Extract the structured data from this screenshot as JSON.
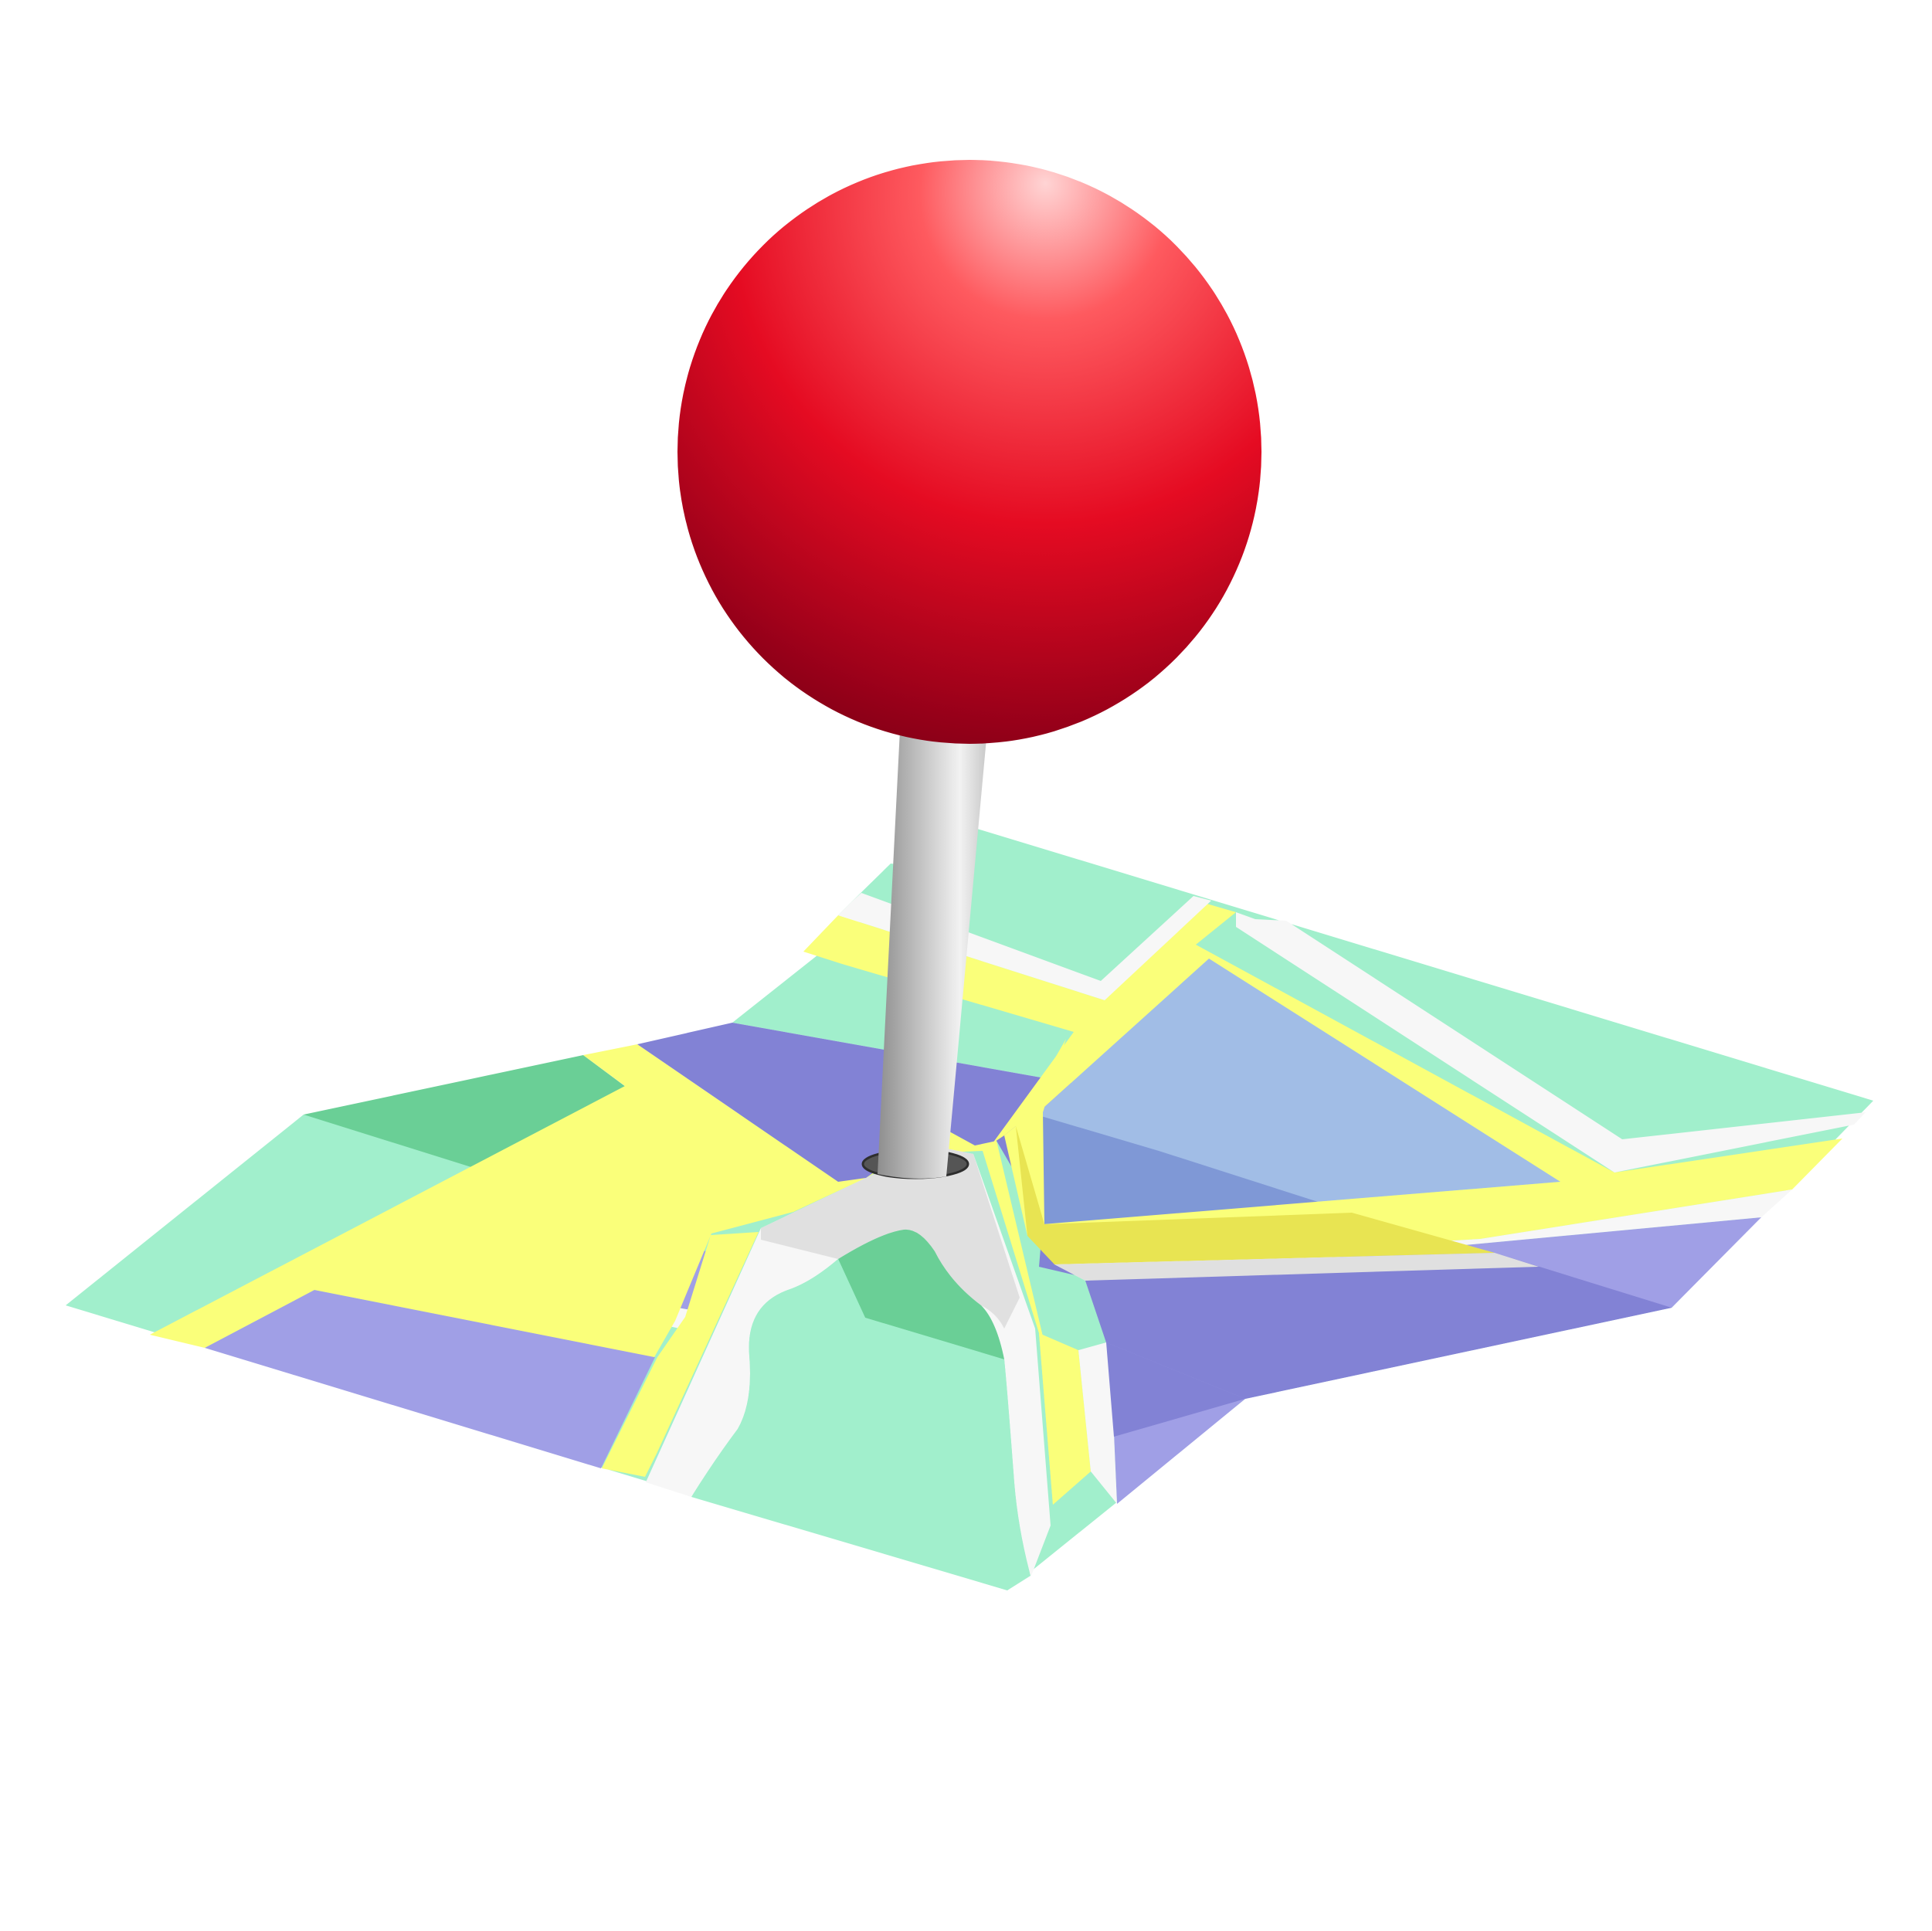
{
  "illustration": {
    "icon": "map-pin-on-folded-map-icon",
    "colors": {
      "background": "#ffffff",
      "park_light": "#a1efcc",
      "park_dark": "#6acf96",
      "block_lavender": "#a09fe6",
      "block_indigo": "#8282d5",
      "block_blue": "#a1bde6",
      "block_blue_shade": "#7f98d6",
      "road_yellow": "#faff7a",
      "road_yellow_shade": "#e8e452",
      "road_white": "#f7f7f7",
      "road_white_shade": "#e0e0e0",
      "pin_head": "#e50b22",
      "pin_head_dark": "#960019",
      "pin_head_highlight": "#ffd4d4",
      "pin_needle": "#dcdcdc",
      "pin_hole": "#555555"
    }
  }
}
